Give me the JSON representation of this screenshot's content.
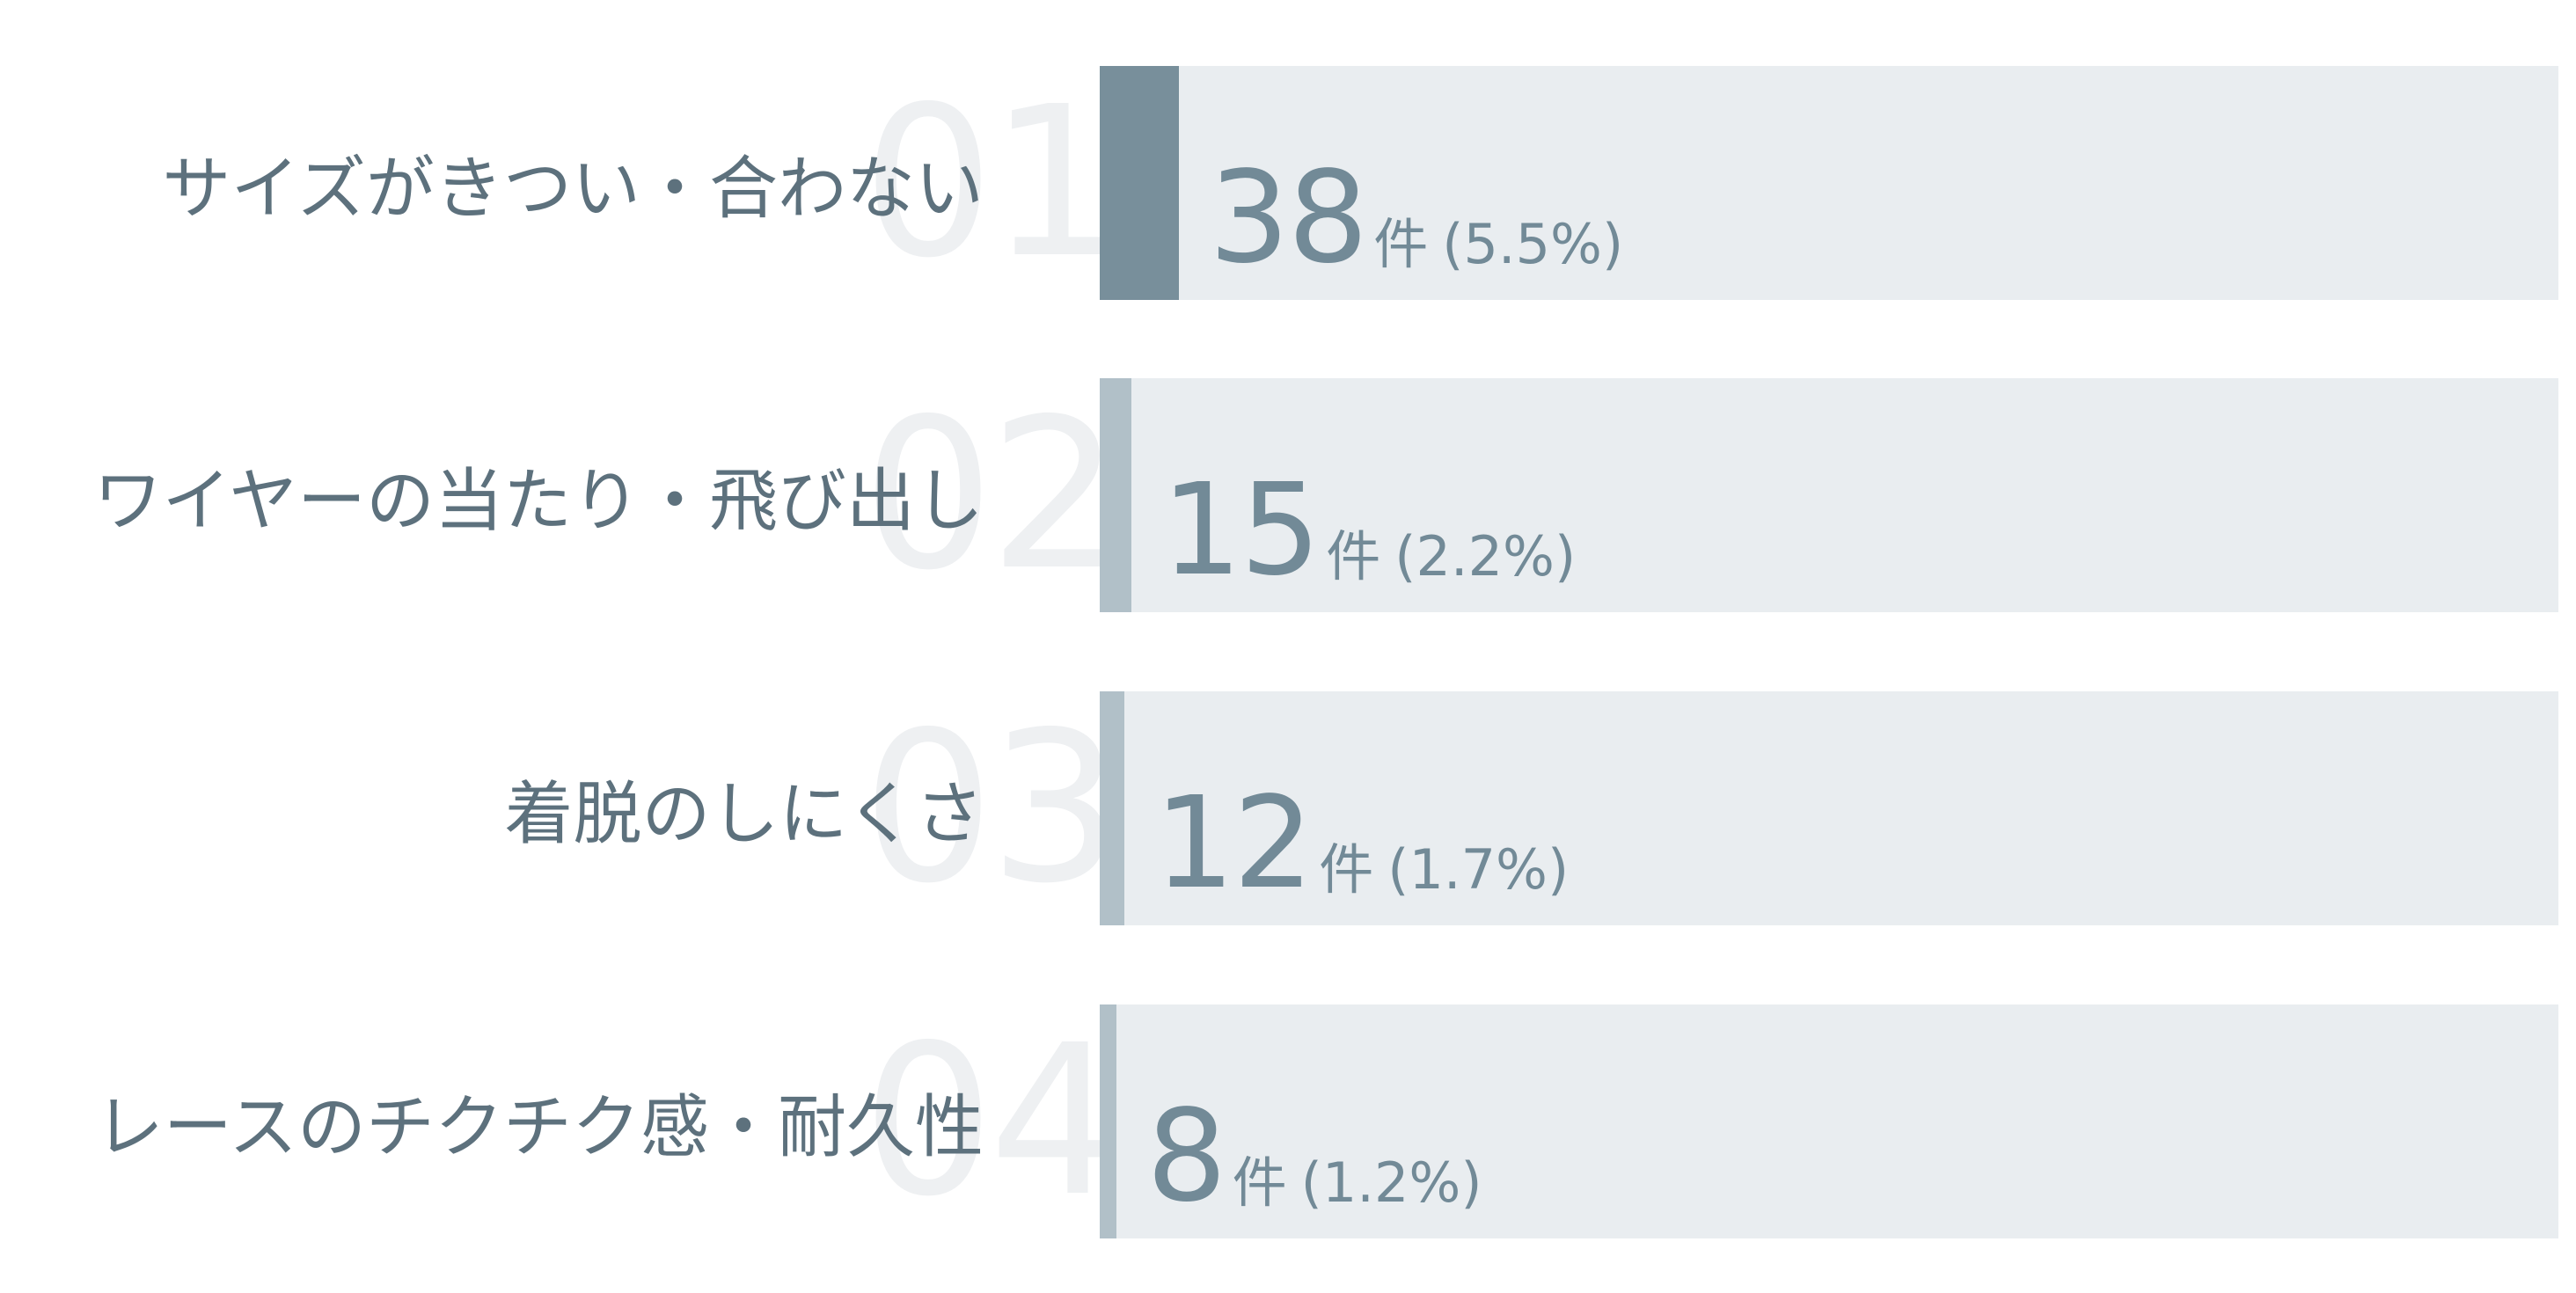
{
  "chart_data": {
    "type": "bar",
    "orientation": "horizontal",
    "categories": [
      "サイズがきつい・合わない",
      "ワイヤーの当たり・飛び出し",
      "着脱のしにくさ",
      "レースのチクチク感・耐久性"
    ],
    "ranks": [
      "01",
      "02",
      "03",
      "04"
    ],
    "values": [
      38,
      15,
      12,
      8
    ],
    "unit": "件",
    "percent_labels": [
      "(5.5%)",
      "(2.2%)",
      "(1.7%)",
      "(1.2%)"
    ],
    "xlim": [
      0,
      700
    ],
    "grid": false,
    "legend": "none"
  },
  "colors": {
    "label_text": "#5d717d",
    "value_text": "#728a97",
    "rank_text": "#eef0f2",
    "track": "#e9edf0",
    "bar_primary": "#788f9b",
    "bar_secondary": "#b1c0c8"
  }
}
